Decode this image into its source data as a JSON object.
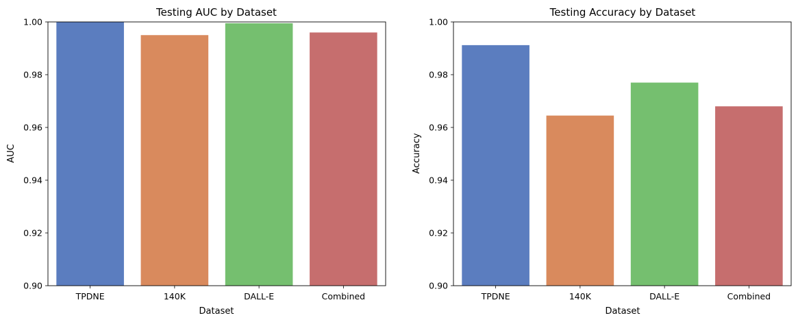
{
  "chart_data": [
    {
      "type": "bar",
      "title": "Testing AUC by Dataset",
      "xlabel": "Dataset",
      "ylabel": "AUC",
      "categories": [
        "TPDNE",
        "140K",
        "DALL-E",
        "Combined"
      ],
      "values": [
        1.0,
        0.995,
        0.9995,
        0.996
      ],
      "ylim": [
        0.9,
        1.0
      ],
      "yticks": [
        "0.90",
        "0.92",
        "0.94",
        "0.96",
        "0.98",
        "1.00"
      ],
      "grid": false
    },
    {
      "type": "bar",
      "title": "Testing Accuracy by Dataset",
      "xlabel": "Dataset",
      "ylabel": "Accuracy",
      "categories": [
        "TPDNE",
        "140K",
        "DALL-E",
        "Combined"
      ],
      "values": [
        0.9912,
        0.9645,
        0.977,
        0.968
      ],
      "ylim": [
        0.9,
        1.0
      ],
      "yticks": [
        "0.90",
        "0.92",
        "0.94",
        "0.96",
        "0.98",
        "1.00"
      ],
      "grid": false
    }
  ],
  "colors": [
    "#5b7dbf",
    "#d98a5d",
    "#75bf6f",
    "#c66e6e"
  ]
}
